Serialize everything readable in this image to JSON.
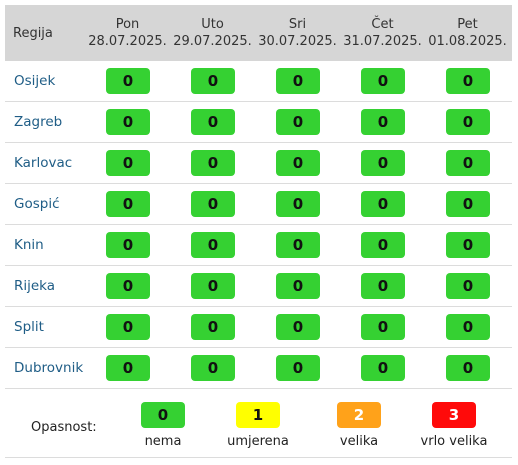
{
  "table": {
    "region_header": "Regija",
    "days": [
      {
        "day": "Pon",
        "date": "28.07.2025."
      },
      {
        "day": "Uto",
        "date": "29.07.2025."
      },
      {
        "day": "Sri",
        "date": "30.07.2025."
      },
      {
        "day": "Čet",
        "date": "31.07.2025."
      },
      {
        "day": "Pet",
        "date": "01.08.2025."
      }
    ],
    "rows": [
      {
        "region": "Osijek",
        "values": [
          "0",
          "0",
          "0",
          "0",
          "0"
        ]
      },
      {
        "region": "Zagreb",
        "values": [
          "0",
          "0",
          "0",
          "0",
          "0"
        ]
      },
      {
        "region": "Karlovac",
        "values": [
          "0",
          "0",
          "0",
          "0",
          "0"
        ]
      },
      {
        "region": "Gospić",
        "values": [
          "0",
          "0",
          "0",
          "0",
          "0"
        ]
      },
      {
        "region": "Knin",
        "values": [
          "0",
          "0",
          "0",
          "0",
          "0"
        ]
      },
      {
        "region": "Rijeka",
        "values": [
          "0",
          "0",
          "0",
          "0",
          "0"
        ]
      },
      {
        "region": "Split",
        "values": [
          "0",
          "0",
          "0",
          "0",
          "0"
        ]
      },
      {
        "region": "Dubrovnik",
        "values": [
          "0",
          "0",
          "0",
          "0",
          "0"
        ]
      }
    ]
  },
  "legend": {
    "title": "Opasnost:",
    "levels": [
      {
        "value": "0",
        "label": "nema",
        "color": "#35d132"
      },
      {
        "value": "1",
        "label": "umjerena",
        "color": "#ffff00"
      },
      {
        "value": "2",
        "label": "velika",
        "color": "#ffa21a"
      },
      {
        "value": "3",
        "label": "vrlo velika",
        "color": "#ff0a0a"
      }
    ]
  }
}
